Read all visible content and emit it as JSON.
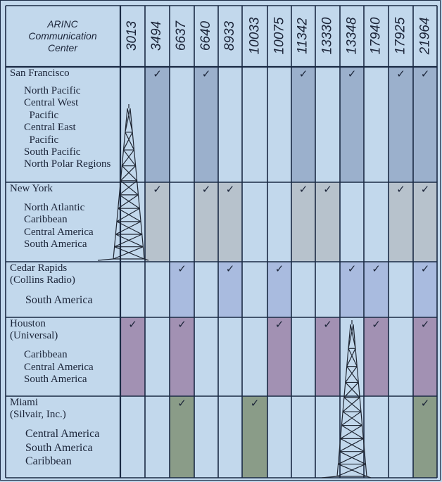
{
  "header": {
    "title_lines": [
      "ARINC",
      "Communication",
      "Center"
    ]
  },
  "frequencies": [
    "3013",
    "3494",
    "6637",
    "6640",
    "8933",
    "10033",
    "10075",
    "11342",
    "13330",
    "13348",
    "17940",
    "17925",
    "21964"
  ],
  "colors": {
    "background": "#c2d8ec",
    "grid": "#1a2a44",
    "san_francisco": "#9bb0cc",
    "new_york": "#b7c2cc",
    "cedar_rapids": "#a9bbdf",
    "houston": "#a291b3",
    "miami": "#8a9c88",
    "tower": "#1f2633"
  },
  "rows": [
    {
      "center": [
        "San Francisco"
      ],
      "regions": [
        "North Pacific",
        "Central West",
        "  Pacific",
        "Central East",
        "  Pacific",
        "South Pacific",
        "North Polar Regions"
      ],
      "checks": [
        "3494",
        "6640",
        "11342",
        "13348",
        "17925",
        "21964"
      ],
      "color_key": "san_francisco"
    },
    {
      "center": [
        "New York"
      ],
      "regions": [
        "North Atlantic",
        "Caribbean",
        "Central America",
        "South America"
      ],
      "checks": [
        "3494",
        "6640",
        "8933",
        "11342",
        "13330",
        "17925",
        "21964"
      ],
      "color_key": "new_york"
    },
    {
      "center": [
        "Cedar Rapids",
        "(Collins Radio)"
      ],
      "regions": [
        "South America"
      ],
      "checks": [
        "6637",
        "8933",
        "10075",
        "13348",
        "17940",
        "21964"
      ],
      "color_key": "cedar_rapids"
    },
    {
      "center": [
        "Houston",
        "(Universal)"
      ],
      "regions": [
        "Caribbean",
        "Central America",
        "South America"
      ],
      "checks": [
        "3013",
        "6637",
        "10075",
        "13330",
        "17940",
        "21964"
      ],
      "color_key": "houston"
    },
    {
      "center": [
        "Miami",
        "(Silvair, Inc.)"
      ],
      "regions": [
        "Central America",
        "South America",
        "Caribbean"
      ],
      "checks": [
        "6637",
        "10033",
        "21964"
      ],
      "color_key": "miami"
    }
  ],
  "check_mark": "✓",
  "icons": [
    "radio-tower-icon",
    "radio-tower-icon"
  ]
}
